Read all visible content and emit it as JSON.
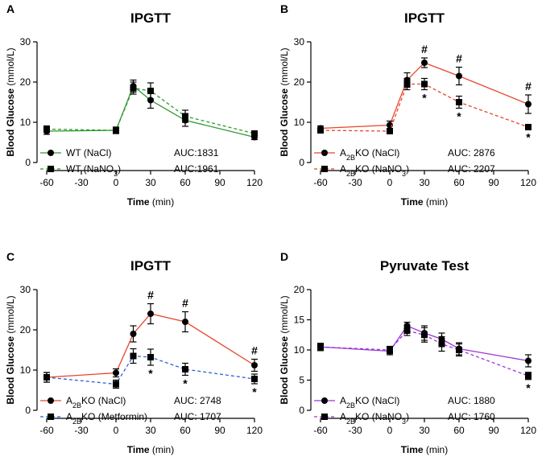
{
  "chart_data": [
    {
      "panel": "A",
      "type": "line",
      "title": "IPGTT",
      "xlabel": "Time",
      "xlabel_unit": "(min)",
      "ylabel": "Blood Glucose (mmol/L)",
      "xlim": [
        -60,
        120
      ],
      "ylim": [
        0,
        30
      ],
      "xticks": [
        "-60",
        "-30",
        "0",
        "30",
        "60",
        "90",
        "120"
      ],
      "yticks": [
        "0",
        "10",
        "20",
        "30"
      ],
      "x": [
        -60,
        0,
        15,
        30,
        60,
        120
      ],
      "series": [
        {
          "name": "WT (NaCl)",
          "legend_parts": [
            "WT (NaCl)"
          ],
          "auc": "AUC:1831",
          "color": "#2e9a2e",
          "dashed": false,
          "marker": "circle",
          "values": [
            7.8,
            8.0,
            19.0,
            15.5,
            10.5,
            6.3
          ],
          "errors": [
            0.8,
            0.8,
            1.5,
            2.0,
            1.5,
            0.6
          ]
        },
        {
          "name": "WT (NaNO3)",
          "legend_parts": [
            "WT (NaNO",
            "3",
            ")"
          ],
          "auc": "AUC:1961",
          "color": "#2e9a2e",
          "dashed": true,
          "marker": "square",
          "values": [
            8.3,
            8.0,
            18.5,
            17.8,
            11.5,
            7.2
          ],
          "errors": [
            0.8,
            0.8,
            1.5,
            2.0,
            1.5,
            0.6
          ]
        }
      ],
      "annotations": []
    },
    {
      "panel": "B",
      "type": "line",
      "title": "IPGTT",
      "xlabel": "Time",
      "xlabel_unit": "(min)",
      "ylabel": "Blood Glucose (mmol/L)",
      "xlim": [
        -60,
        120
      ],
      "ylim": [
        0,
        30
      ],
      "xticks": [
        "-60",
        "-30",
        "0",
        "30",
        "60",
        "90",
        "120"
      ],
      "yticks": [
        "0",
        "10",
        "20",
        "30"
      ],
      "x": [
        -60,
        0,
        15,
        30,
        60,
        120
      ],
      "series": [
        {
          "name": "A2BKO (NaCl)",
          "legend_parts": [
            "A",
            "2B",
            "KO (NaCl)"
          ],
          "auc": "AUC: 2876",
          "color": "#e8452b",
          "dashed": false,
          "marker": "circle",
          "values": [
            8.5,
            9.3,
            20.5,
            24.8,
            21.5,
            14.5
          ],
          "errors": [
            0.6,
            1.0,
            1.8,
            1.2,
            2.2,
            2.3
          ]
        },
        {
          "name": "A2BKO (NaNO3)",
          "legend_parts": [
            "A",
            "2B",
            "KO (NaNO",
            "3",
            ")"
          ],
          "auc": "AUC: 2207",
          "color": "#e8452b",
          "dashed": true,
          "marker": "square",
          "values": [
            8.0,
            7.8,
            19.5,
            19.5,
            15.0,
            8.8
          ],
          "errors": [
            0.5,
            0.6,
            1.4,
            1.4,
            1.5,
            0.5
          ]
        }
      ],
      "annotations": [
        {
          "x": 30,
          "label": "#",
          "at": "above",
          "series": 0
        },
        {
          "x": 60,
          "label": "#",
          "at": "above",
          "series": 0
        },
        {
          "x": 120,
          "label": "#",
          "at": "above",
          "series": 0
        },
        {
          "x": 30,
          "label": "*",
          "at": "below",
          "series": 1
        },
        {
          "x": 60,
          "label": "*",
          "at": "below",
          "series": 1
        },
        {
          "x": 120,
          "label": "*",
          "at": "below",
          "series": 1
        }
      ]
    },
    {
      "panel": "C",
      "type": "line",
      "title": "IPGTT",
      "xlabel": "Time",
      "xlabel_unit": "(min)",
      "ylabel": "Blood Glucose (mmol/L)",
      "xlim": [
        -60,
        120
      ],
      "ylim": [
        0,
        30
      ],
      "xticks": [
        "-60",
        "-30",
        "0",
        "30",
        "60",
        "90",
        "120"
      ],
      "yticks": [
        "0",
        "10",
        "20",
        "30"
      ],
      "x": [
        -60,
        0,
        15,
        30,
        60,
        120
      ],
      "series": [
        {
          "name": "A2BKO (NaCl)",
          "legend_parts": [
            "A",
            "2B",
            "KO (NaCl)"
          ],
          "auc": "AUC: 2748",
          "color": "#e8452b",
          "dashed": false,
          "marker": "circle",
          "values": [
            8.2,
            9.3,
            19.0,
            24.0,
            22.0,
            11.2
          ],
          "errors": [
            1.2,
            1.0,
            2.0,
            2.5,
            2.5,
            1.5
          ]
        },
        {
          "name": "A2BKO (Metformin)",
          "legend_parts": [
            "A",
            "2B",
            "KO (Metformin)"
          ],
          "auc": "AUC: 1707",
          "color": "#3060d8",
          "dashed": true,
          "marker": "square",
          "values": [
            8.2,
            6.5,
            13.5,
            13.2,
            10.2,
            7.8
          ],
          "errors": [
            1.2,
            1.0,
            1.8,
            2.0,
            1.5,
            1.2
          ]
        }
      ],
      "annotations": [
        {
          "x": 30,
          "label": "#",
          "at": "above",
          "series": 0
        },
        {
          "x": 60,
          "label": "#",
          "at": "above",
          "series": 0
        },
        {
          "x": 120,
          "label": "#",
          "at": "above",
          "series": 0
        },
        {
          "x": 30,
          "label": "*",
          "at": "below",
          "series": 1
        },
        {
          "x": 60,
          "label": "*",
          "at": "below",
          "series": 1
        },
        {
          "x": 120,
          "label": "*",
          "at": "below",
          "series": 1
        }
      ]
    },
    {
      "panel": "D",
      "type": "line",
      "title": "Pyruvate Test",
      "xlabel": "Time",
      "xlabel_unit": "(min)",
      "ylabel": "Blood Glucose (mmol/L)",
      "xlim": [
        -60,
        120
      ],
      "ylim": [
        0,
        20
      ],
      "xticks": [
        "-60",
        "-30",
        "0",
        "30",
        "60",
        "90",
        "120"
      ],
      "yticks": [
        "0",
        "5",
        "10",
        "15",
        "20"
      ],
      "x": [
        -60,
        0,
        15,
        30,
        45,
        60,
        120
      ],
      "series": [
        {
          "name": "A2BKO (NaCl)",
          "legend_parts": [
            "A",
            "2B",
            "KO (NaCl)"
          ],
          "auc": "AUC: 1880",
          "color": "#9a35d8",
          "dashed": false,
          "marker": "circle",
          "values": [
            10.5,
            9.8,
            14.0,
            12.8,
            11.8,
            10.2,
            8.2
          ],
          "errors": [
            0.6,
            0.6,
            0.6,
            1.2,
            1.0,
            1.0,
            1.0
          ]
        },
        {
          "name": "A2BKO (NaNO3)",
          "legend_parts": [
            "A",
            "2B",
            "KO (NaNO",
            "3",
            ")"
          ],
          "auc": "AUC: 1760",
          "color": "#9a35d8",
          "dashed": true,
          "marker": "square",
          "values": [
            10.5,
            10.0,
            13.2,
            12.5,
            11.0,
            10.0,
            5.7
          ],
          "errors": [
            0.6,
            0.6,
            0.8,
            1.2,
            1.2,
            1.0,
            0.6
          ]
        }
      ],
      "annotations": [
        {
          "x": 120,
          "label": "*",
          "at": "below",
          "series": 1
        }
      ]
    }
  ]
}
